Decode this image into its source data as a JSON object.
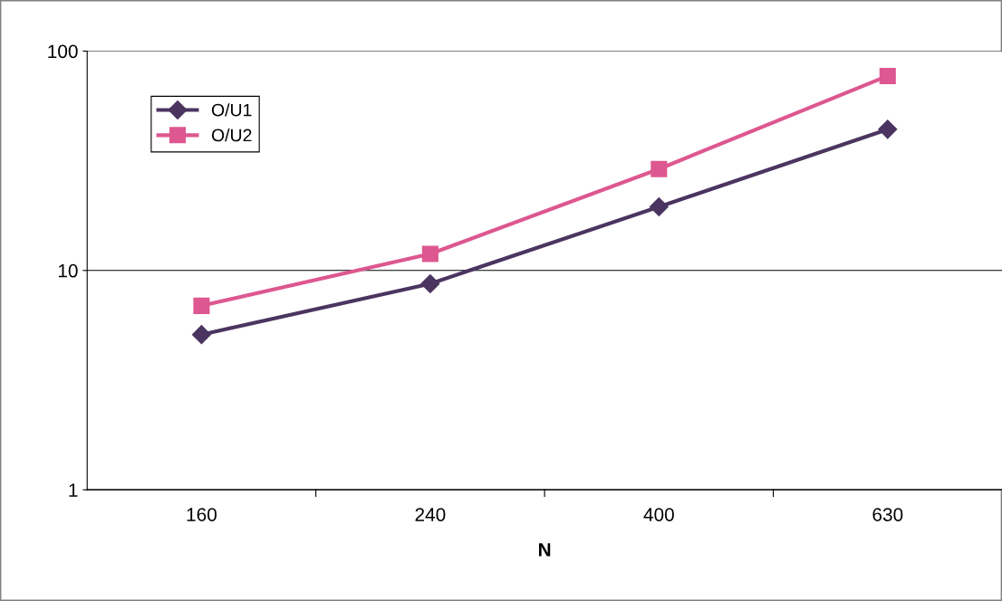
{
  "chart_data": {
    "type": "line",
    "xlabel": "N",
    "categories": [
      "160",
      "240",
      "400",
      "630"
    ],
    "series": [
      {
        "name": "O/U1",
        "color": "#4b3560",
        "marker": "diamond",
        "values": [
          5.1,
          8.7,
          19.5,
          44
        ]
      },
      {
        "name": "O/U2",
        "color": "#dd5790",
        "marker": "square",
        "values": [
          6.9,
          11.9,
          29,
          77
        ]
      }
    ],
    "log": "y",
    "ylim": [
      1,
      100
    ],
    "yticks": [
      1,
      10,
      100
    ],
    "grid": "y",
    "legend": "top left",
    "line_style": "solid"
  }
}
